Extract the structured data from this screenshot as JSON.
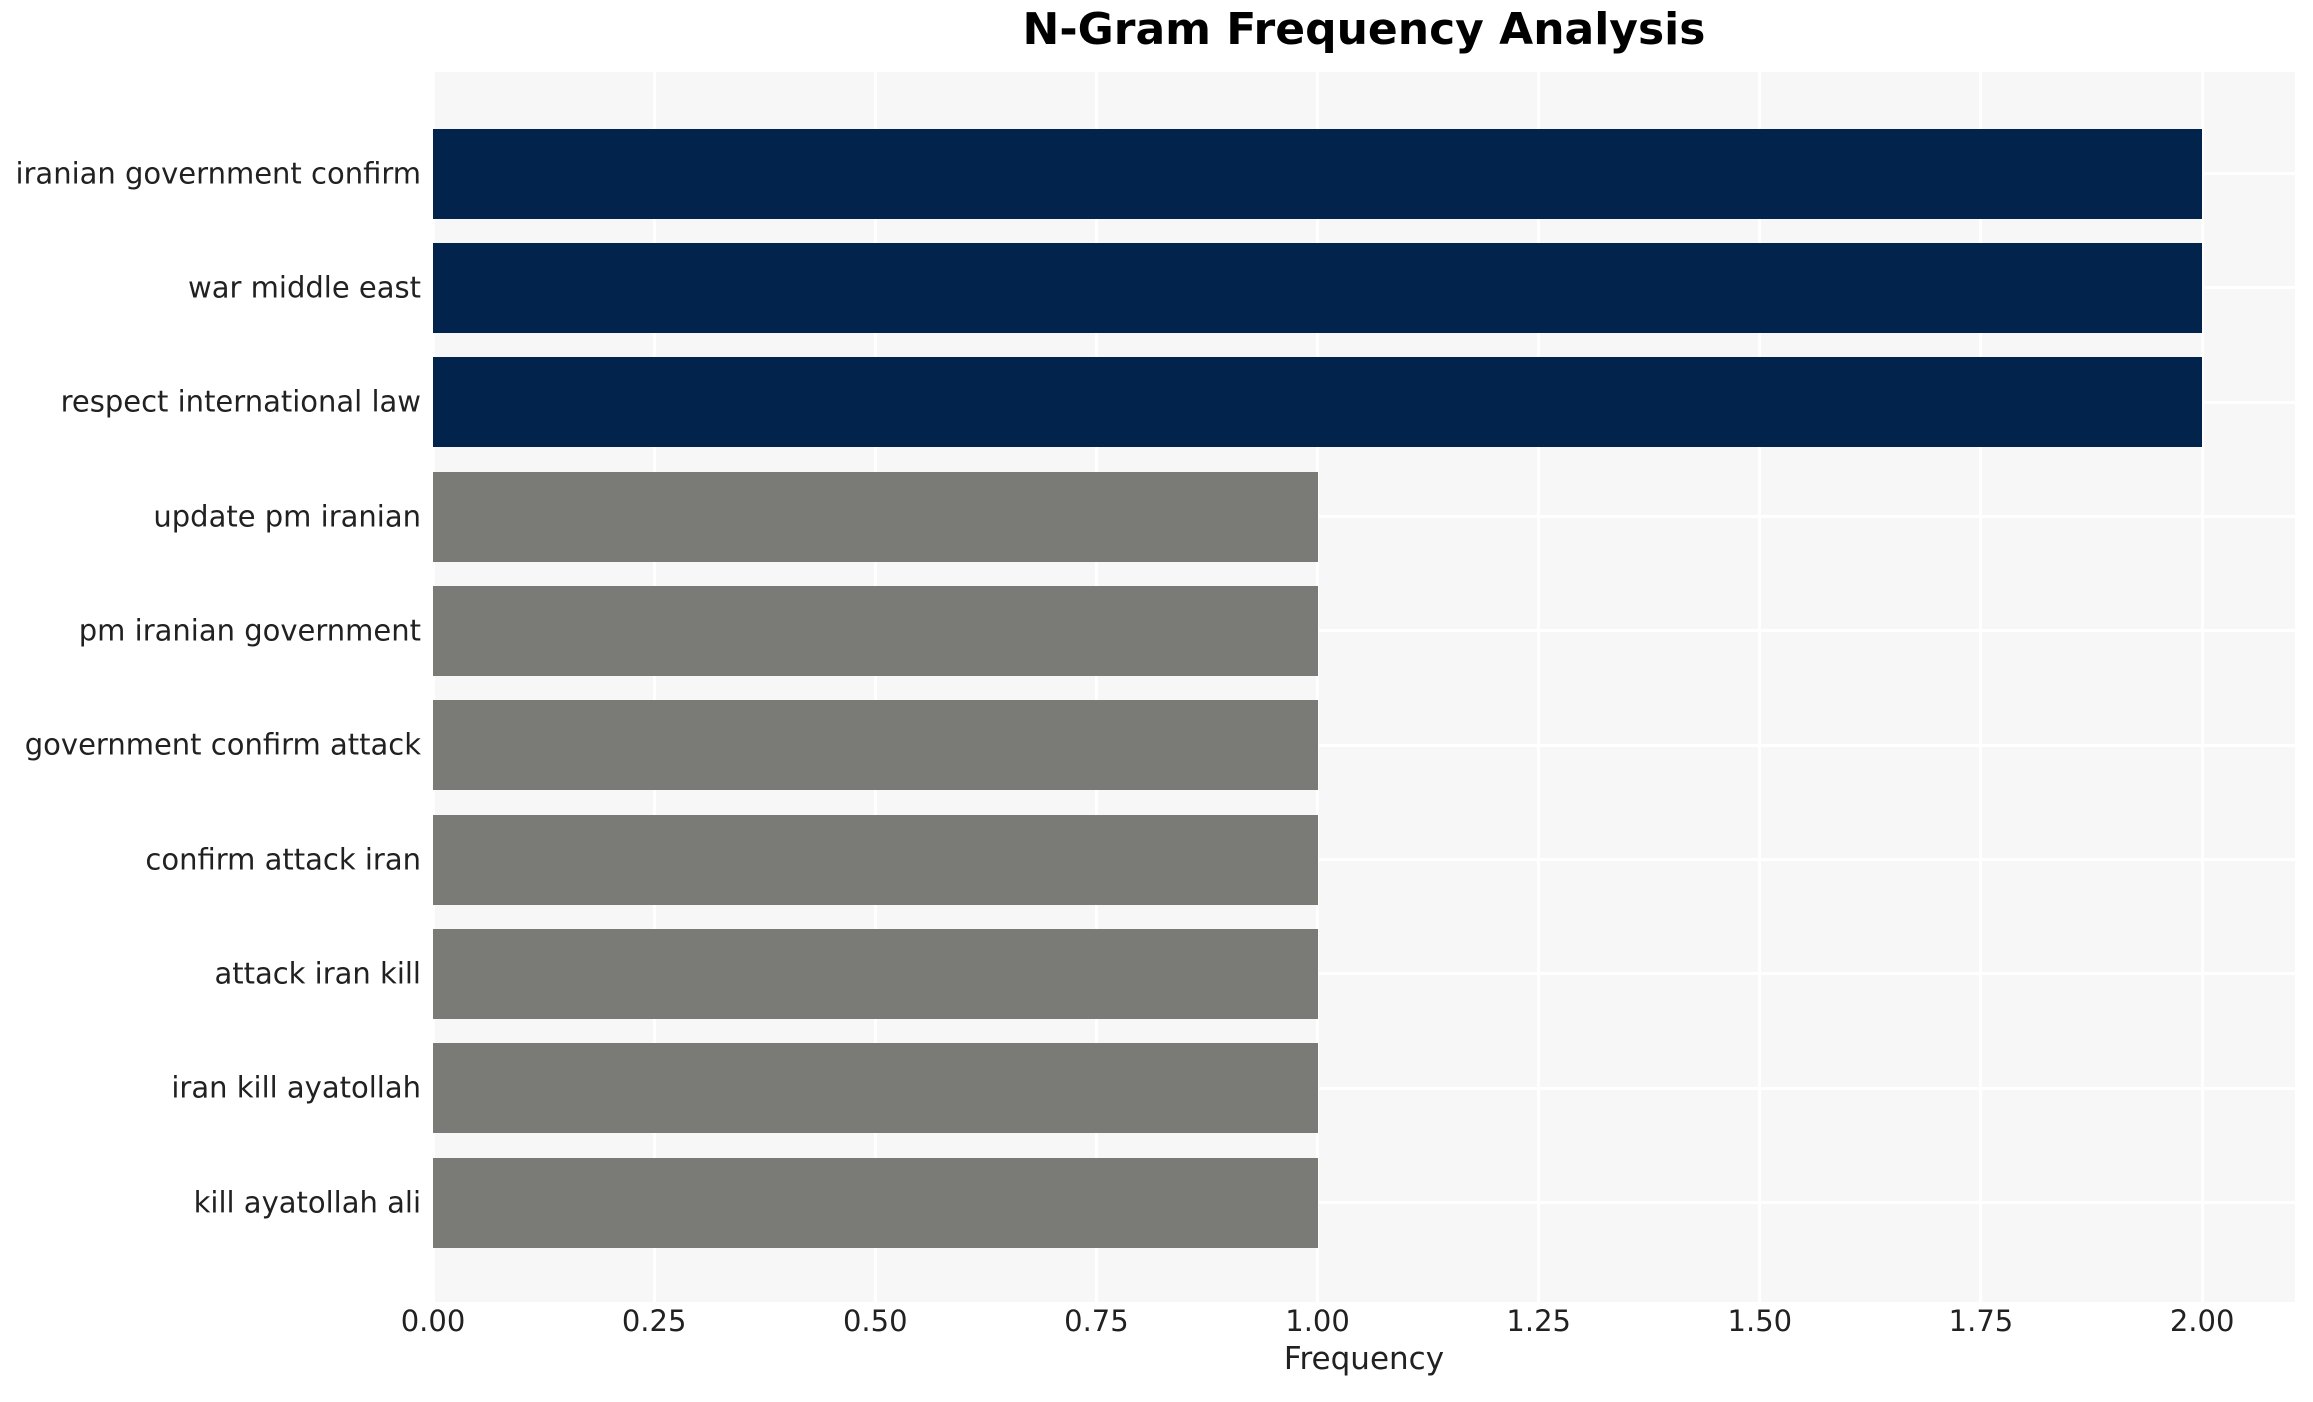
{
  "chart_data": {
    "type": "bar",
    "orientation": "horizontal",
    "title": "N-Gram Frequency Analysis",
    "xlabel": "Frequency",
    "ylabel": "",
    "categories": [
      "iranian government confirm",
      "war middle east",
      "respect international law",
      "update pm iranian",
      "pm iranian government",
      "government confirm attack",
      "confirm attack iran",
      "attack iran kill",
      "iran kill ayatollah",
      "kill ayatollah ali"
    ],
    "values": [
      2,
      2,
      2,
      1,
      1,
      1,
      1,
      1,
      1,
      1
    ],
    "xlim": [
      0,
      2.105
    ],
    "xticks": [
      0.0,
      0.25,
      0.5,
      0.75,
      1.0,
      1.25,
      1.5,
      1.75,
      2.0
    ],
    "xtick_labels": [
      "0.00",
      "0.25",
      "0.50",
      "0.75",
      "1.00",
      "1.25",
      "1.50",
      "1.75",
      "2.00"
    ],
    "grid": "on",
    "legend": "none",
    "colors": {
      "bar_high": "#02234C",
      "bar_low": "#7A7A77",
      "plot_background": "#F7F7F7",
      "gridline": "#FFFFFF",
      "title_text": "#000000",
      "axis_text": "#212121"
    },
    "bar_colors": [
      "#02234C",
      "#02234C",
      "#02234C",
      "#7A7A77",
      "#7A7A77",
      "#7A7A77",
      "#7A7A77",
      "#7A7A77",
      "#7A7A77",
      "#7A7A77"
    ]
  }
}
